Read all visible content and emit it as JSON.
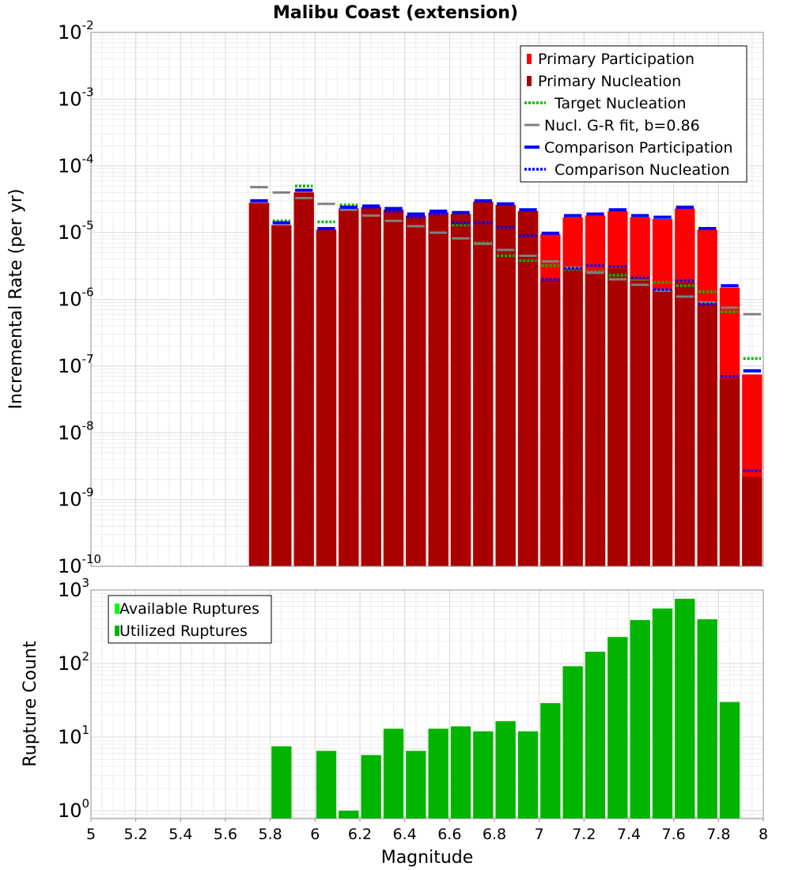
{
  "chart_data": [
    {
      "type": "bar",
      "title": "Malibu Coast (extension)",
      "ylabel": "Incremental Rate (per yr)",
      "xlabel": "",
      "y_scale": "log",
      "xlim": [
        5,
        8
      ],
      "ylim": [
        1e-10,
        0.01
      ],
      "grid": true,
      "legend_position": "top-right",
      "y_tick_labels": [
        "10",
        "10",
        "10",
        "10",
        "10",
        "10",
        "10",
        "10",
        "10"
      ],
      "y_tick_exponents": [
        "-10",
        "-9",
        "-8",
        "-7",
        "-6",
        "-5",
        "-4",
        "-3",
        "-2"
      ],
      "x": [
        5.75,
        5.85,
        5.95,
        6.05,
        6.15,
        6.25,
        6.35,
        6.45,
        6.55,
        6.65,
        6.75,
        6.85,
        6.95,
        7.05,
        7.15,
        7.25,
        7.35,
        7.45,
        7.55,
        7.65,
        7.75,
        7.85,
        7.95
      ],
      "series": [
        {
          "name": "Primary Participation",
          "color": "#ff0000",
          "style": "bar",
          "values": [
            2.8e-05,
            1.3e-05,
            4e-05,
            1.1e-05,
            2.3e-05,
            2.4e-05,
            2.2e-05,
            1.8e-05,
            2e-05,
            1.9e-05,
            2.9e-05,
            2.6e-05,
            2.1e-05,
            9.5e-06,
            1.7e-05,
            1.8e-05,
            2.1e-05,
            1.7e-05,
            1.6e-05,
            2.3e-05,
            1.1e-05,
            1.5e-06,
            7.5e-08
          ]
        },
        {
          "name": "Primary Nucleation",
          "color": "#aa0000",
          "style": "bar",
          "values": [
            2.8e-05,
            1.3e-05,
            4e-05,
            1.1e-05,
            2.3e-05,
            2.4e-05,
            2.2e-05,
            1.8e-05,
            2e-05,
            1.9e-05,
            2.9e-05,
            2.6e-05,
            2.1e-05,
            2e-06,
            2.8e-06,
            2.6e-06,
            2.9e-06,
            1.9e-06,
            1.4e-06,
            1.8e-06,
            8.5e-07,
            6.5e-08,
            2.2e-09
          ]
        },
        {
          "name": "Target Nucleation",
          "color": "#00bb00",
          "style": "dotted",
          "values": [
            null,
            1.5e-05,
            5e-05,
            1.45e-05,
            2.6e-05,
            null,
            null,
            null,
            null,
            1.3e-05,
            7e-06,
            4.5e-06,
            3.8e-06,
            3.2e-06,
            2.8e-06,
            2.6e-06,
            2.3e-06,
            2e-06,
            1.8e-06,
            1.6e-06,
            1.3e-06,
            6.5e-07,
            1.3e-07
          ]
        },
        {
          "name": "Nucl. G-R fit, b=0.86",
          "color": "#808080",
          "style": "solid",
          "values": [
            4.8e-05,
            4e-05,
            3.3e-05,
            2.7e-05,
            2.2e-05,
            1.8e-05,
            1.5e-05,
            1.25e-05,
            1e-05,
            8.2e-06,
            6.8e-06,
            5.5e-06,
            4.5e-06,
            3.7e-06,
            3e-06,
            2.5e-06,
            2e-06,
            1.65e-06,
            1.35e-06,
            1.1e-06,
            9e-07,
            7.5e-07,
            6e-07
          ]
        },
        {
          "name": "Comparison Participation",
          "color": "#0000ff",
          "style": "solid",
          "values": [
            3e-05,
            1.4e-05,
            4.3e-05,
            1.15e-05,
            2.4e-05,
            2.5e-05,
            2.3e-05,
            1.9e-05,
            2.1e-05,
            2e-05,
            3e-05,
            2.7e-05,
            2.2e-05,
            9.8e-06,
            1.8e-05,
            1.9e-05,
            2.2e-05,
            1.8e-05,
            1.7e-05,
            2.4e-05,
            1.15e-05,
            1.6e-06,
            8.5e-08
          ]
        },
        {
          "name": "Comparison Nucleation",
          "color": "#0000ff",
          "style": "dotted",
          "values": [
            null,
            null,
            null,
            null,
            2.4e-05,
            2.4e-05,
            2.1e-05,
            1.7e-05,
            1.9e-05,
            1.4e-05,
            1.4e-05,
            1.2e-05,
            9e-06,
            2e-06,
            2.9e-06,
            3.2e-06,
            3.1e-06,
            2.1e-06,
            1.4e-06,
            1.9e-06,
            8.5e-07,
            7e-08,
            2.7e-09
          ]
        }
      ]
    },
    {
      "type": "bar",
      "title": "",
      "xlabel": "Magnitude",
      "ylabel": "Rupture Count",
      "y_scale": "log",
      "xlim": [
        5,
        8
      ],
      "ylim": [
        0.78,
        1000
      ],
      "grid": true,
      "legend_position": "top-left",
      "x_tick_labels": [
        "5",
        "5.2",
        "5.4",
        "5.6",
        "5.8",
        "6",
        "6.2",
        "6.4",
        "6.6",
        "6.8",
        "7",
        "7.2",
        "7.4",
        "7.6",
        "7.8",
        "8"
      ],
      "y_tick_labels": [
        "10",
        "10",
        "10",
        "10"
      ],
      "y_tick_exponents": [
        "0",
        "1",
        "2",
        "3"
      ],
      "x": [
        5.75,
        5.85,
        5.95,
        6.05,
        6.15,
        6.25,
        6.35,
        6.45,
        6.55,
        6.65,
        6.75,
        6.85,
        6.95,
        7.05,
        7.15,
        7.25,
        7.35,
        7.45,
        7.55,
        7.65,
        7.75,
        7.85,
        7.95
      ],
      "series": [
        {
          "name": "Available Ruptures",
          "color": "#00ff00",
          "values": [
            null,
            7.5,
            null,
            6.5,
            1,
            5.7,
            13,
            6.5,
            13,
            14,
            12,
            16.5,
            12,
            29,
            92,
            145,
            230,
            390,
            560,
            760,
            400,
            30,
            null
          ]
        },
        {
          "name": "Utilized Ruptures",
          "color": "#00b400",
          "values": [
            null,
            7.5,
            null,
            6.5,
            1,
            5.7,
            13,
            6.5,
            13,
            14,
            12,
            16.5,
            12,
            29,
            92,
            145,
            230,
            390,
            560,
            760,
            400,
            30,
            null
          ]
        }
      ]
    }
  ]
}
